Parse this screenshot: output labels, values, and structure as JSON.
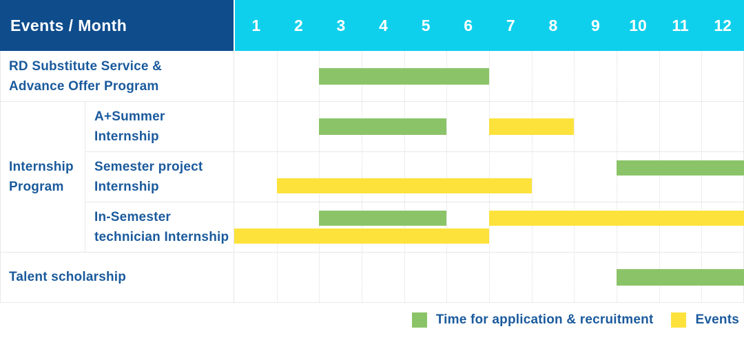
{
  "header": {
    "title": "Events / Month"
  },
  "months": [
    "1",
    "2",
    "3",
    "4",
    "5",
    "6",
    "7",
    "8",
    "9",
    "10",
    "11",
    "12"
  ],
  "colors": {
    "header_navy": "#0E4C8C",
    "header_cyan": "#0FD0EC",
    "bar_green": "#8BC468",
    "bar_yellow": "#FDE23C",
    "label_blue": "#1A5A9C",
    "grid_line": "#E7E7E7"
  },
  "chart_data": {
    "type": "gantt",
    "unit": "month",
    "x_range": [
      1,
      12
    ],
    "group_label": "Internship\nProgram",
    "rows": [
      {
        "label": "RD Substitute Service &\nAdvance Offer Program",
        "group": null,
        "bars": [
          {
            "series": "Time for application & recruitment",
            "color": "green",
            "start_month": 3,
            "end_month": 6,
            "track": "center"
          }
        ]
      },
      {
        "label": "A+Summer\nInternship",
        "group": "Internship Program",
        "bars": [
          {
            "series": "Time for application & recruitment",
            "color": "green",
            "start_month": 3,
            "end_month": 5,
            "track": "center"
          },
          {
            "series": "Events",
            "color": "yellow",
            "start_month": 7,
            "end_month": 8,
            "track": "center"
          }
        ]
      },
      {
        "label": "Semester project\nInternship",
        "group": "Internship Program",
        "bars": [
          {
            "series": "Time for application & recruitment",
            "color": "green",
            "start_month": 10,
            "end_month": 12,
            "track": "top"
          },
          {
            "series": "Events",
            "color": "yellow",
            "start_month": 2,
            "end_month": 7,
            "track": "bottom"
          }
        ]
      },
      {
        "label": "In-Semester\ntechnician Internship",
        "group": "Internship Program",
        "bars": [
          {
            "series": "Time for application & recruitment",
            "color": "green",
            "start_month": 3,
            "end_month": 5,
            "track": "top"
          },
          {
            "series": "Events",
            "color": "yellow",
            "start_month": 7,
            "end_month": 12,
            "track": "top"
          },
          {
            "series": "Events",
            "color": "yellow",
            "start_month": 1,
            "end_month": 6,
            "track": "bottom"
          }
        ]
      },
      {
        "label": "Talent scholarship",
        "group": null,
        "bars": [
          {
            "series": "Time for application & recruitment",
            "color": "green",
            "start_month": 10,
            "end_month": 12,
            "track": "center"
          }
        ]
      }
    ]
  },
  "legend": [
    {
      "color_key": "green",
      "label": "Time for application & recruitment"
    },
    {
      "color_key": "yellow",
      "label": "Events"
    }
  ]
}
